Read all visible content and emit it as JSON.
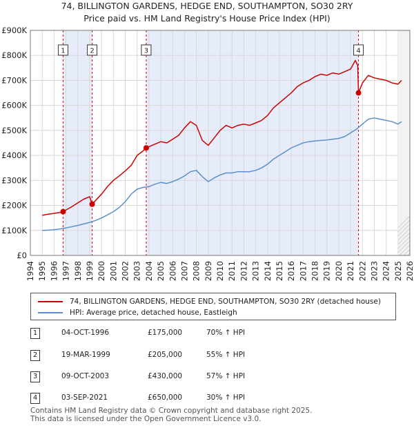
{
  "chart_data": {
    "type": "line",
    "title": "74, BILLINGTON GARDENS, HEDGE END, SOUTHAMPTON, SO30 2RY",
    "subtitle": "Price paid vs. HM Land Registry's House Price Index (HPI)",
    "xlabel": "",
    "ylabel": "",
    "xlim": [
      1994,
      2026
    ],
    "ylim": [
      0,
      900000
    ],
    "y_ticks": [
      0,
      100000,
      200000,
      300000,
      400000,
      500000,
      600000,
      700000,
      800000,
      900000
    ],
    "y_tick_labels": [
      "£0",
      "£100K",
      "£200K",
      "£300K",
      "£400K",
      "£500K",
      "£600K",
      "£700K",
      "£800K",
      "£900K"
    ],
    "x_ticks": [
      1994,
      1995,
      1996,
      1997,
      1998,
      1999,
      2000,
      2001,
      2002,
      2003,
      2004,
      2005,
      2006,
      2007,
      2008,
      2009,
      2010,
      2011,
      2012,
      2013,
      2014,
      2015,
      2016,
      2017,
      2018,
      2019,
      2020,
      2021,
      2022,
      2023,
      2024,
      2025,
      2026
    ],
    "x_tick_labels": [
      "1994",
      "1995",
      "1996",
      "1997",
      "1998",
      "1999",
      "2000",
      "2001",
      "2002",
      "2003",
      "2004",
      "2005",
      "2006",
      "2007",
      "2008",
      "2009",
      "2010",
      "2011",
      "2012",
      "2013",
      "2014",
      "2015",
      "2016",
      "2017",
      "2018",
      "2019",
      "2020",
      "2021",
      "2022",
      "2023",
      "2024",
      "2025",
      "2026"
    ],
    "grid": true,
    "legend_position": "below-chart",
    "shaded_periods": [
      [
        1996.76,
        1999.21
      ],
      [
        2003.77,
        2021.67
      ]
    ],
    "forecast_start": 2025.0,
    "series": [
      {
        "name": "74, BILLINGTON GARDENS, HEDGE END, SOUTHAMPTON, SO30 2RY (detached house)",
        "color": "#cc0000",
        "x": [
          1995.0,
          1995.5,
          1996.0,
          1996.5,
          1996.76,
          1997.5,
          1998.0,
          1998.5,
          1999.0,
          1999.21,
          2000.0,
          2000.5,
          2001.0,
          2001.5,
          2002.0,
          2002.5,
          2003.0,
          2003.5,
          2003.77,
          2004.5,
          2005.0,
          2005.5,
          2006.0,
          2006.5,
          2007.0,
          2007.5,
          2008.0,
          2008.5,
          2009.0,
          2009.5,
          2010.0,
          2010.5,
          2011.0,
          2011.5,
          2012.0,
          2012.5,
          2013.0,
          2013.5,
          2014.0,
          2014.5,
          2015.0,
          2015.5,
          2016.0,
          2016.5,
          2017.0,
          2017.5,
          2018.0,
          2018.5,
          2019.0,
          2019.5,
          2020.0,
          2020.5,
          2021.0,
          2021.4,
          2021.6,
          2021.67,
          2022.0,
          2022.5,
          2023.0,
          2023.5,
          2024.0,
          2024.5,
          2025.0,
          2025.3
        ],
        "values": [
          160000,
          165000,
          168000,
          172000,
          175000,
          195000,
          210000,
          225000,
          235000,
          205000,
          245000,
          275000,
          300000,
          318000,
          338000,
          360000,
          400000,
          418000,
          430000,
          445000,
          455000,
          450000,
          465000,
          480000,
          510000,
          535000,
          520000,
          460000,
          440000,
          470000,
          500000,
          520000,
          510000,
          520000,
          525000,
          520000,
          530000,
          540000,
          560000,
          590000,
          610000,
          630000,
          650000,
          675000,
          690000,
          700000,
          715000,
          725000,
          720000,
          730000,
          725000,
          735000,
          745000,
          780000,
          760000,
          650000,
          690000,
          720000,
          710000,
          705000,
          700000,
          690000,
          685000,
          700000
        ]
      },
      {
        "name": "HPI: Average price, detached house, Eastleigh",
        "color": "#5b8fcb",
        "x": [
          1995.0,
          1995.5,
          1996.0,
          1996.5,
          1997.0,
          1997.5,
          1998.0,
          1998.5,
          1999.0,
          1999.5,
          2000.0,
          2000.5,
          2001.0,
          2001.5,
          2002.0,
          2002.5,
          2003.0,
          2003.5,
          2004.0,
          2004.5,
          2005.0,
          2005.5,
          2006.0,
          2006.5,
          2007.0,
          2007.5,
          2008.0,
          2008.5,
          2009.0,
          2009.5,
          2010.0,
          2010.5,
          2011.0,
          2011.5,
          2012.0,
          2012.5,
          2013.0,
          2013.5,
          2014.0,
          2014.5,
          2015.0,
          2015.5,
          2016.0,
          2016.5,
          2017.0,
          2017.5,
          2018.0,
          2018.5,
          2019.0,
          2019.5,
          2020.0,
          2020.5,
          2021.0,
          2021.5,
          2022.0,
          2022.5,
          2023.0,
          2023.5,
          2024.0,
          2024.5,
          2025.0,
          2025.3
        ],
        "values": [
          100000,
          101000,
          103000,
          106000,
          110000,
          115000,
          120000,
          126000,
          132000,
          140000,
          150000,
          162000,
          175000,
          192000,
          215000,
          245000,
          265000,
          272000,
          275000,
          285000,
          292000,
          288000,
          295000,
          305000,
          318000,
          335000,
          340000,
          315000,
          295000,
          310000,
          322000,
          330000,
          330000,
          335000,
          335000,
          335000,
          340000,
          350000,
          365000,
          385000,
          400000,
          415000,
          430000,
          440000,
          450000,
          455000,
          458000,
          460000,
          462000,
          465000,
          468000,
          475000,
          490000,
          505000,
          525000,
          545000,
          550000,
          545000,
          540000,
          535000,
          525000,
          535000
        ]
      }
    ],
    "sale_markers": [
      {
        "label": "1",
        "x": 1996.76,
        "value": 175000
      },
      {
        "label": "2",
        "x": 1999.21,
        "value": 205000
      },
      {
        "label": "3",
        "x": 2003.77,
        "value": 430000
      },
      {
        "label": "4",
        "x": 2021.67,
        "value": 650000
      }
    ]
  },
  "legend": {
    "property_label": "74, BILLINGTON GARDENS, HEDGE END, SOUTHAMPTON, SO30 2RY (detached house)",
    "hpi_label": "HPI: Average price, detached house, Eastleigh",
    "property_color": "#cc0000",
    "hpi_color": "#5b8fcb"
  },
  "sales": [
    {
      "num": "1",
      "date": "04-OCT-1996",
      "price": "£175,000",
      "hpi": "70% ↑ HPI"
    },
    {
      "num": "2",
      "date": "19-MAR-1999",
      "price": "£205,000",
      "hpi": "55% ↑ HPI"
    },
    {
      "num": "3",
      "date": "09-OCT-2003",
      "price": "£430,000",
      "hpi": "57% ↑ HPI"
    },
    {
      "num": "4",
      "date": "03-SEP-2021",
      "price": "£650,000",
      "hpi": "30% ↑ HPI"
    }
  ],
  "footer": {
    "line1": "Contains HM Land Registry data © Crown copyright and database right 2025.",
    "line2": "This data is licensed under the Open Government Licence v3.0."
  }
}
